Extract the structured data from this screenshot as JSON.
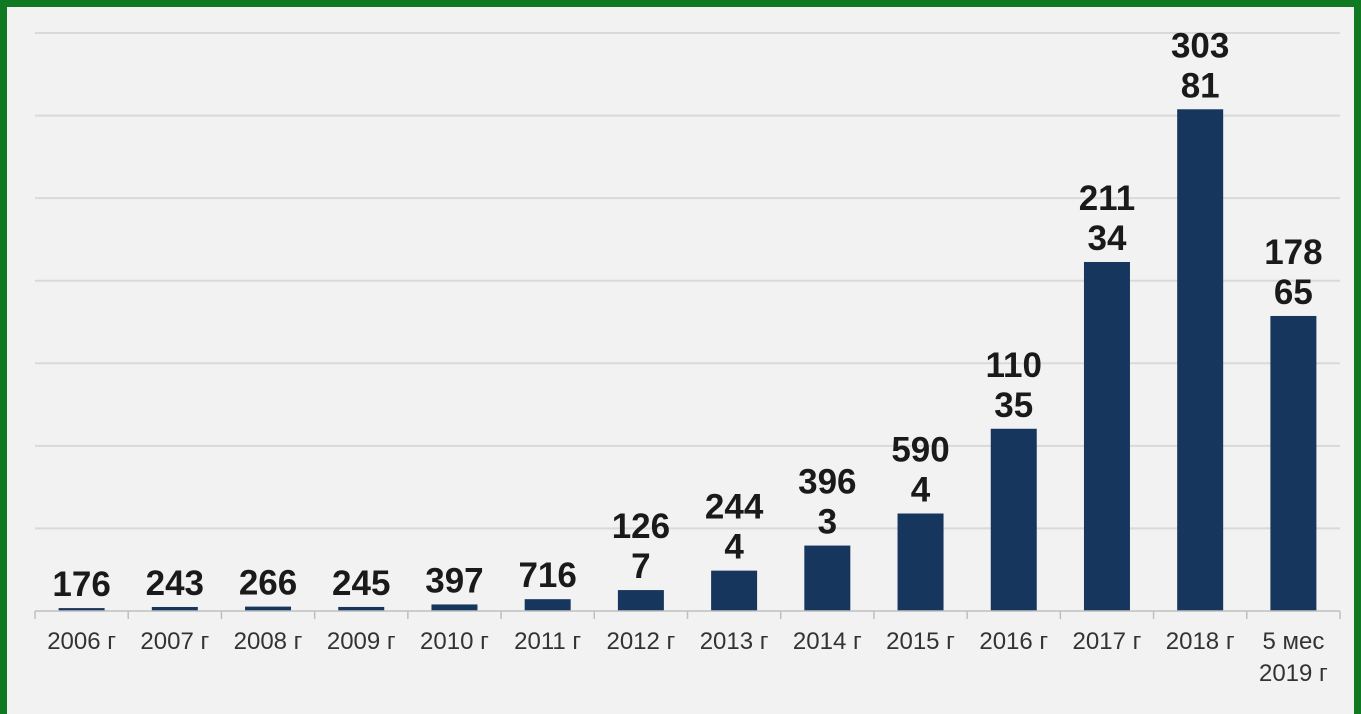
{
  "chart_data": {
    "type": "bar",
    "title": "",
    "xlabel": "",
    "ylabel": "",
    "categories": [
      [
        "2006 г"
      ],
      [
        "2007 г"
      ],
      [
        "2008 г"
      ],
      [
        "2009 г"
      ],
      [
        "2010 г"
      ],
      [
        "2011 г"
      ],
      [
        "2012 г"
      ],
      [
        "2013 г"
      ],
      [
        "2014 г"
      ],
      [
        "2015 г"
      ],
      [
        "2016 г"
      ],
      [
        "2017 г"
      ],
      [
        "2018 г"
      ],
      [
        "5 мес",
        "2019 г"
      ]
    ],
    "values": [
      176,
      243,
      266,
      245,
      397,
      716,
      1267,
      2444,
      3963,
      5904,
      11035,
      21134,
      30381,
      17865
    ],
    "data_labels": [
      [
        "176"
      ],
      [
        "243"
      ],
      [
        "266"
      ],
      [
        "245"
      ],
      [
        "397"
      ],
      [
        "716"
      ],
      [
        "126",
        "7"
      ],
      [
        "244",
        "4"
      ],
      [
        "396",
        "3"
      ],
      [
        "590",
        "4"
      ],
      [
        "110",
        "35"
      ],
      [
        "211",
        "34"
      ],
      [
        "303",
        "81"
      ],
      [
        "178",
        "65"
      ]
    ],
    "ylim": [
      0,
      35000
    ],
    "grid": true,
    "legend": "none",
    "colors": {
      "bar": "#17365d",
      "grid": "#d9d9d9",
      "frame": "#0f7a22",
      "background": "#f2f2f2"
    }
  }
}
